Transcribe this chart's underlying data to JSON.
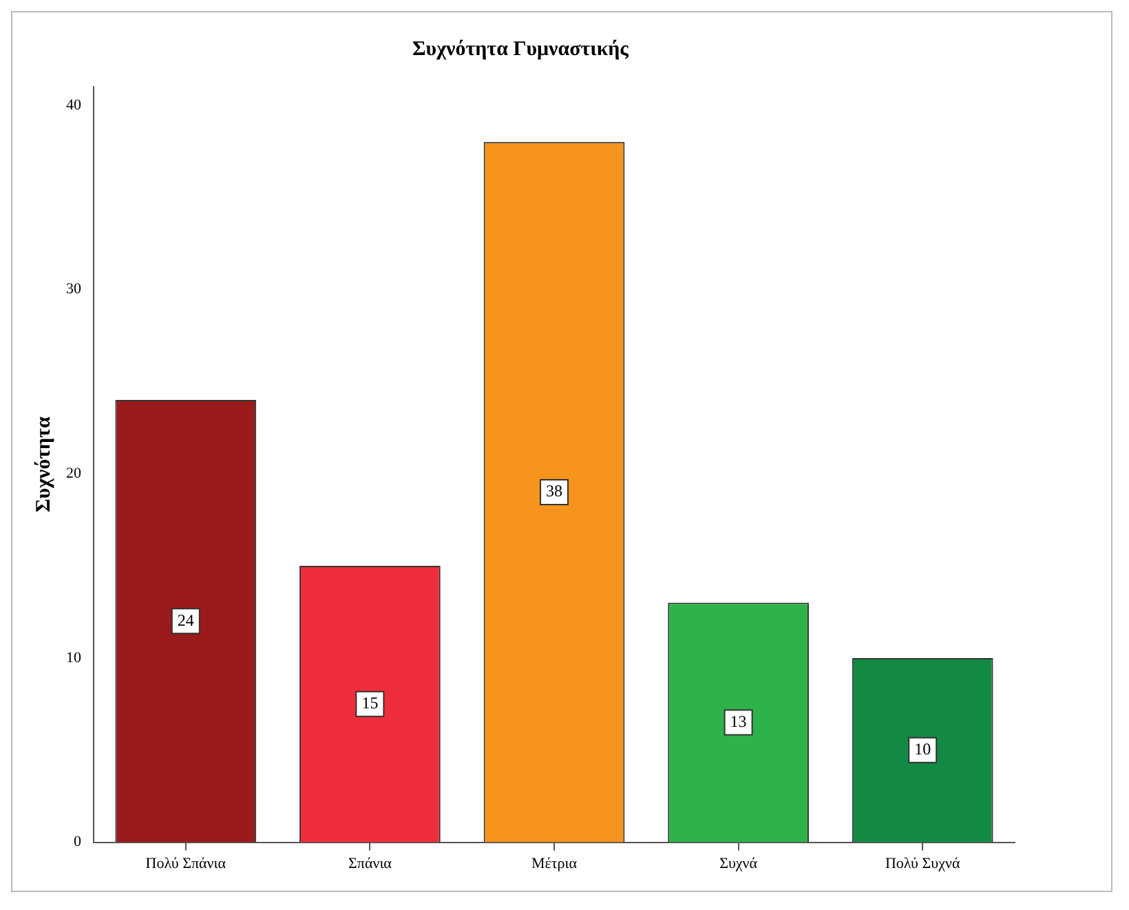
{
  "chart_data": {
    "type": "bar",
    "title": "Συχνότητα Γυμναστικής",
    "ylabel": "Συχνότητα",
    "categories": [
      "Πολύ Σπάνια",
      "Σπάνια",
      "Μέτρια",
      "Συχνά",
      "Πολύ Συχνά"
    ],
    "values": [
      24,
      15,
      38,
      13,
      10
    ],
    "colors": [
      "#9b1a1c",
      "#ee2e3a",
      "#f7941d",
      "#2db34a",
      "#138a44"
    ],
    "ylim": [
      0,
      41
    ],
    "yticks": [
      0,
      10,
      20,
      30,
      40
    ],
    "grid": false,
    "legend": false,
    "data_labels": true
  }
}
